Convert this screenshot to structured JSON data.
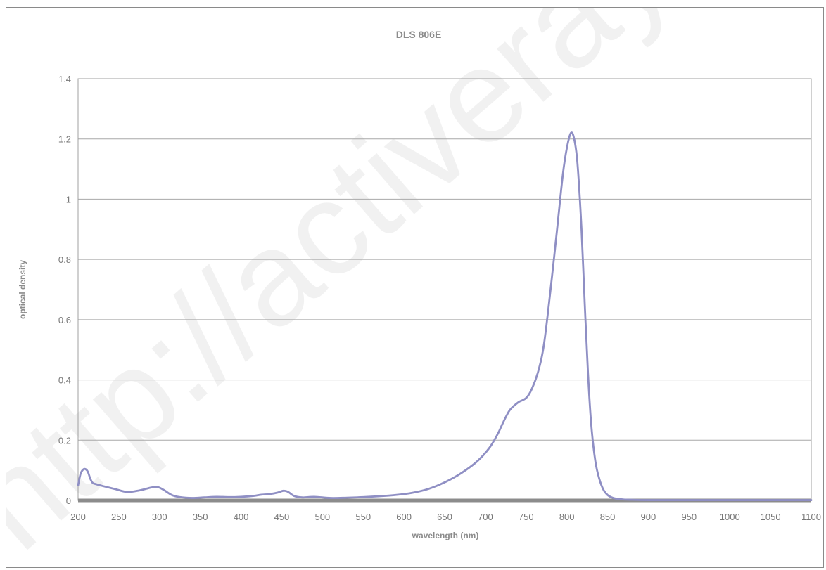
{
  "chart_data": {
    "type": "line",
    "title": "DLS 806E",
    "xlabel": "wavelength (nm)",
    "ylabel": "optical density",
    "xlim": [
      200,
      1100
    ],
    "ylim": [
      0,
      1.4
    ],
    "x_ticks": [
      "200",
      "250",
      "300",
      "350",
      "400",
      "450",
      "500",
      "550",
      "600",
      "650",
      "700",
      "750",
      "800",
      "850",
      "900",
      "950",
      "1000",
      "1050",
      "1100"
    ],
    "y_ticks": [
      "0",
      "0.2",
      "0.4",
      "0.6",
      "0.8",
      "1",
      "1.2",
      "1.4"
    ],
    "grid": true,
    "legend": "none",
    "series": [
      {
        "color": "#8f8fc4",
        "x": [
          200,
          203,
          206,
          209,
          212,
          215,
          218,
          222,
          230,
          245,
          260,
          275,
          290,
          298,
          305,
          315,
          325,
          340,
          355,
          370,
          385,
          400,
          415,
          425,
          435,
          445,
          452,
          458,
          465,
          475,
          490,
          510,
          530,
          550,
          570,
          590,
          610,
          630,
          650,
          670,
          690,
          705,
          715,
          722,
          730,
          740,
          750,
          757,
          765,
          772,
          780,
          788,
          795,
          800,
          805,
          809,
          813,
          818,
          822,
          826,
          830,
          835,
          840,
          845,
          850,
          855,
          860,
          870,
          880,
          900,
          950,
          1000,
          1050,
          1100
        ],
        "y": [
          0.05,
          0.088,
          0.102,
          0.104,
          0.095,
          0.072,
          0.058,
          0.054,
          0.048,
          0.038,
          0.028,
          0.033,
          0.043,
          0.044,
          0.035,
          0.018,
          0.011,
          0.008,
          0.01,
          0.012,
          0.011,
          0.012,
          0.015,
          0.019,
          0.021,
          0.026,
          0.032,
          0.028,
          0.015,
          0.01,
          0.012,
          0.008,
          0.009,
          0.011,
          0.014,
          0.018,
          0.025,
          0.038,
          0.06,
          0.09,
          0.13,
          0.175,
          0.22,
          0.26,
          0.3,
          0.325,
          0.34,
          0.37,
          0.43,
          0.52,
          0.7,
          0.9,
          1.08,
          1.17,
          1.22,
          1.2,
          1.12,
          0.9,
          0.65,
          0.42,
          0.25,
          0.13,
          0.07,
          0.035,
          0.018,
          0.01,
          0.006,
          0.003,
          0.002,
          0.001,
          0.001,
          0.001,
          0.001,
          0.001
        ]
      }
    ]
  },
  "watermark": {
    "text": "http://activeraysci.com"
  }
}
